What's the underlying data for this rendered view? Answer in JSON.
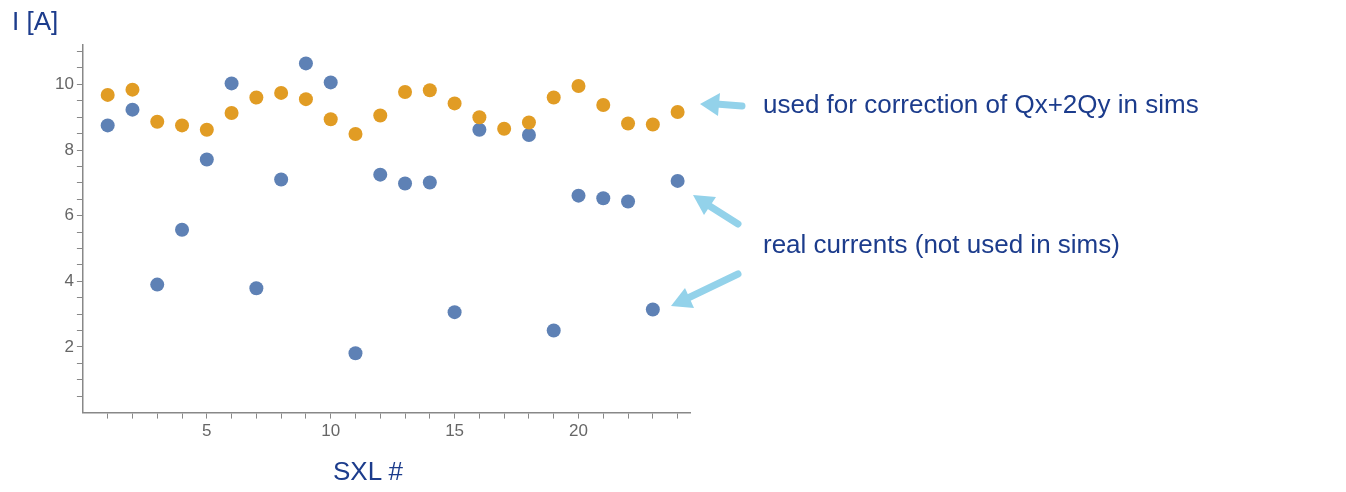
{
  "chart_data": {
    "type": "scatter",
    "xlabel": "SXL #",
    "ylabel": "I [A]",
    "x": [
      1,
      2,
      3,
      4,
      5,
      6,
      7,
      8,
      9,
      10,
      11,
      12,
      13,
      14,
      15,
      16,
      17,
      18,
      19,
      20,
      21,
      22,
      23,
      24
    ],
    "series": [
      {
        "color": "#e19c24",
        "values": [
          9.68,
          9.84,
          8.86,
          8.75,
          8.62,
          9.13,
          9.6,
          9.74,
          9.55,
          8.94,
          8.49,
          9.05,
          9.77,
          9.82,
          9.42,
          9.0,
          8.65,
          8.84,
          9.6,
          9.95,
          9.37,
          8.81,
          8.78,
          9.16
        ]
      },
      {
        "color": "#5e81b5",
        "values": [
          8.75,
          9.23,
          3.9,
          5.57,
          7.71,
          10.03,
          3.79,
          7.1,
          10.64,
          10.06,
          1.81,
          7.25,
          6.98,
          7.01,
          3.06,
          8.62,
          null,
          8.46,
          2.5,
          6.61,
          6.53,
          6.43,
          3.14,
          7.06
        ]
      }
    ],
    "xlim": [
      0,
      24.5
    ],
    "ylim": [
      0,
      11.2
    ],
    "xticks": [
      {
        "value": 1,
        "label": null
      },
      {
        "value": 2,
        "label": null
      },
      {
        "value": 3,
        "label": null
      },
      {
        "value": 4,
        "label": null
      },
      5,
      {
        "value": 6,
        "label": null
      },
      {
        "value": 7,
        "label": null
      },
      {
        "value": 8,
        "label": null
      },
      {
        "value": 9,
        "label": null
      },
      10,
      {
        "value": 11,
        "label": null
      },
      {
        "value": 12,
        "label": null
      },
      {
        "value": 13,
        "label": null
      },
      {
        "value": 14,
        "label": null
      },
      15,
      {
        "value": 16,
        "label": null
      },
      {
        "value": 17,
        "label": null
      },
      {
        "value": 18,
        "label": null
      },
      {
        "value": 19,
        "label": null
      },
      20,
      {
        "value": 21,
        "label": null
      },
      {
        "value": 22,
        "label": null
      },
      {
        "value": 23,
        "label": null
      },
      {
        "value": 24,
        "label": null
      }
    ],
    "yticks": [
      {
        "value": 0.5,
        "label": null
      },
      {
        "value": 1,
        "label": null
      },
      {
        "value": 1.5,
        "label": null
      },
      2,
      {
        "value": 2.5,
        "label": null
      },
      {
        "value": 3,
        "label": null
      },
      {
        "value": 3.5,
        "label": null
      },
      4,
      {
        "value": 4.5,
        "label": null
      },
      {
        "value": 5,
        "label": null
      },
      {
        "value": 5.5,
        "label": null
      },
      6,
      {
        "value": 6.5,
        "label": null
      },
      {
        "value": 7,
        "label": null
      },
      {
        "value": 7.5,
        "label": null
      },
      8,
      {
        "value": 8.5,
        "label": null
      },
      {
        "value": 9,
        "label": null
      },
      {
        "value": 9.5,
        "label": null
      },
      10,
      {
        "value": 10.5,
        "label": null
      },
      {
        "value": 11,
        "label": null
      }
    ],
    "annotations": [
      "used for correction of Qx+2Qy in sims",
      "real currents (not used in sims)"
    ],
    "grid": false,
    "legend": false,
    "marker": "circle"
  }
}
